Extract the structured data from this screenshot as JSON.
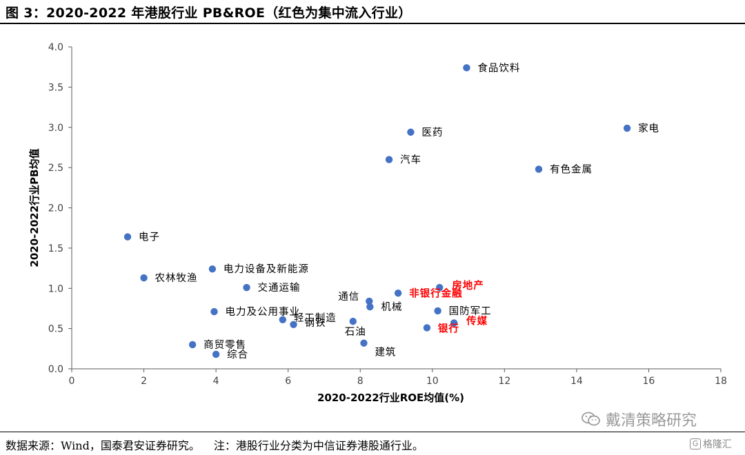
{
  "figure": {
    "title": "图 3：2020-2022 年港股行业 PB&ROE（红色为集中流入行业）"
  },
  "colors": {
    "point": "#4472C4",
    "highlight_label": "#FF0000",
    "normal_label": "#000000",
    "axis": "#595959"
  },
  "chart_data": {
    "type": "scatter",
    "title": "",
    "xlabel": "2020-2022行业ROE均值(%)",
    "ylabel": "2020-2022行业PB均值",
    "xlim": [
      0,
      18
    ],
    "ylim": [
      0,
      4
    ],
    "xticks": [
      "0",
      "2",
      "4",
      "6",
      "8",
      "10",
      "12",
      "14",
      "16",
      "18"
    ],
    "yticks": [
      "0.0",
      "0.5",
      "1.0",
      "1.5",
      "2.0",
      "2.5",
      "3.0",
      "3.5",
      "4.0"
    ],
    "grid": false,
    "legend": "none",
    "points": [
      {
        "label": "食品饮料",
        "x": 10.95,
        "y": 3.74,
        "highlight": false
      },
      {
        "label": "家电",
        "x": 15.4,
        "y": 2.99,
        "highlight": false
      },
      {
        "label": "医药",
        "x": 9.4,
        "y": 2.94,
        "highlight": false
      },
      {
        "label": "汽车",
        "x": 8.8,
        "y": 2.6,
        "highlight": false
      },
      {
        "label": "有色金属",
        "x": 12.95,
        "y": 2.48,
        "highlight": false
      },
      {
        "label": "电子",
        "x": 1.55,
        "y": 1.64,
        "highlight": false
      },
      {
        "label": "电力设备及新能源",
        "x": 3.9,
        "y": 1.24,
        "highlight": false
      },
      {
        "label": "农林牧渔",
        "x": 2.0,
        "y": 1.13,
        "highlight": false
      },
      {
        "label": "交通运输",
        "x": 4.85,
        "y": 1.01,
        "highlight": false
      },
      {
        "label": "通信",
        "x": 8.25,
        "y": 0.84,
        "highlight": false
      },
      {
        "label": "机械",
        "x": 8.27,
        "y": 0.77,
        "highlight": false
      },
      {
        "label": "非银行金融",
        "x": 9.05,
        "y": 0.94,
        "highlight": true
      },
      {
        "label": "房地产",
        "x": 10.2,
        "y": 1.01,
        "highlight": true
      },
      {
        "label": "国防军工",
        "x": 10.15,
        "y": 0.72,
        "highlight": false
      },
      {
        "label": "电力及公用事业",
        "x": 3.95,
        "y": 0.71,
        "highlight": false
      },
      {
        "label": "轻工制造",
        "x": 5.85,
        "y": 0.61,
        "highlight": false
      },
      {
        "label": "钢铁",
        "x": 6.15,
        "y": 0.55,
        "highlight": false
      },
      {
        "label": "石油",
        "x": 7.8,
        "y": 0.59,
        "highlight": false
      },
      {
        "label": "银行",
        "x": 9.85,
        "y": 0.51,
        "highlight": true
      },
      {
        "label": "传媒",
        "x": 10.6,
        "y": 0.57,
        "highlight": true
      },
      {
        "label": "商贸零售",
        "x": 3.35,
        "y": 0.3,
        "highlight": false
      },
      {
        "label": "建筑",
        "x": 8.1,
        "y": 0.32,
        "highlight": false
      },
      {
        "label": "综合",
        "x": 4.0,
        "y": 0.18,
        "highlight": false
      }
    ]
  },
  "footer": {
    "source": "数据来源：Wind，国泰君安证券研究。",
    "note": "注：港股行业分类为中信证券港股通行业。"
  },
  "watermark": {
    "text": "戴清策略研究",
    "icon": "wechat-icon",
    "badge": "格隆汇"
  }
}
